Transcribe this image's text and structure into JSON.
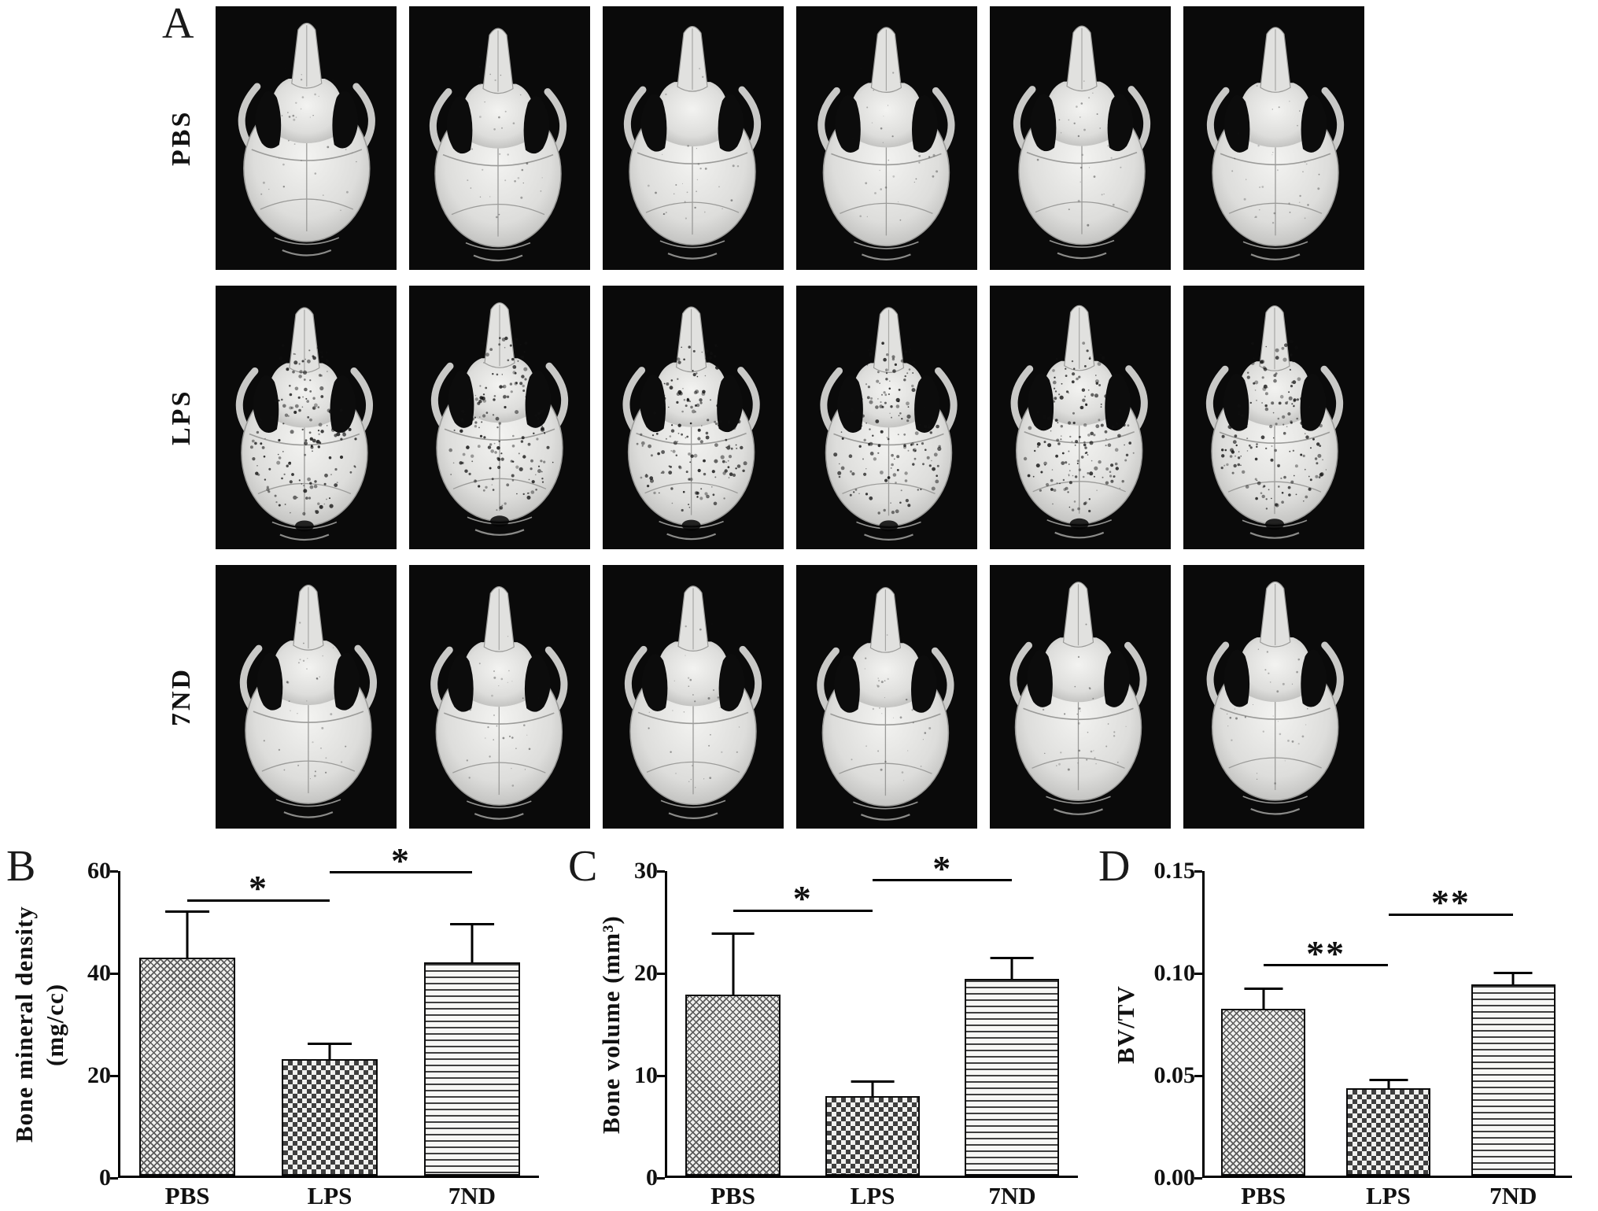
{
  "panels": {
    "a": {
      "letter": "A",
      "rows": [
        {
          "label": "PBS",
          "images": 6,
          "texture": "dense"
        },
        {
          "label": "LPS",
          "images": 6,
          "texture": "porous"
        },
        {
          "label": "7ND",
          "images": 6,
          "texture": "dense"
        }
      ]
    },
    "b": {
      "letter": "B"
    },
    "c": {
      "letter": "C"
    },
    "d": {
      "letter": "D"
    }
  },
  "chart_data": [
    {
      "type": "bar",
      "panel": "B",
      "categories": [
        "PBS",
        "LPS",
        "7ND"
      ],
      "values": [
        43,
        23,
        42
      ],
      "errors_upper": [
        9,
        3,
        7.5
      ],
      "ylabel_lines": [
        "Bone mineral density",
        "(mg/cc)"
      ],
      "ylim": [
        0,
        60
      ],
      "yticks": [
        {
          "v": 0,
          "label": "0"
        },
        {
          "v": 20,
          "label": "20"
        },
        {
          "v": 40,
          "label": "40"
        },
        {
          "v": 60,
          "label": "60"
        }
      ],
      "bar_patterns": [
        "stipple",
        "checker",
        "hlines"
      ],
      "significance": [
        {
          "from": 0,
          "to": 1,
          "label": "*",
          "v": 54
        },
        {
          "from": 1,
          "to": 2,
          "label": "*",
          "v": 59.5
        }
      ],
      "legend": "none",
      "grid": false
    },
    {
      "type": "bar",
      "panel": "C",
      "categories": [
        "PBS",
        "LPS",
        "7ND"
      ],
      "values": [
        17.8,
        7.8,
        19.4
      ],
      "errors_upper": [
        6,
        1.5,
        2
      ],
      "ylabel_lines": [
        "Bone volume (mm³)"
      ],
      "ylim": [
        0,
        30
      ],
      "yticks": [
        {
          "v": 0,
          "label": "0"
        },
        {
          "v": 10,
          "label": "10"
        },
        {
          "v": 20,
          "label": "20"
        },
        {
          "v": 30,
          "label": "30"
        }
      ],
      "bar_patterns": [
        "stipple",
        "checker",
        "hlines"
      ],
      "significance": [
        {
          "from": 0,
          "to": 1,
          "label": "*",
          "v": 26
        },
        {
          "from": 1,
          "to": 2,
          "label": "*",
          "v": 29
        }
      ],
      "legend": "none",
      "grid": false
    },
    {
      "type": "bar",
      "panel": "D",
      "categories": [
        "PBS",
        "LPS",
        "7ND"
      ],
      "values": [
        0.082,
        0.043,
        0.094
      ],
      "errors_upper": [
        0.01,
        0.004,
        0.006
      ],
      "ylabel_lines": [
        "BV/TV"
      ],
      "ylim": [
        0,
        0.15
      ],
      "yticks": [
        {
          "v": 0,
          "label": "0.00"
        },
        {
          "v": 0.05,
          "label": "0.05"
        },
        {
          "v": 0.1,
          "label": "0.10"
        },
        {
          "v": 0.15,
          "label": "0.15"
        }
      ],
      "bar_patterns": [
        "stipple",
        "checker",
        "hlines"
      ],
      "significance": [
        {
          "from": 0,
          "to": 1,
          "label": "**",
          "v": 0.103
        },
        {
          "from": 1,
          "to": 2,
          "label": "**",
          "v": 0.128
        }
      ],
      "legend": "none",
      "grid": false
    }
  ]
}
